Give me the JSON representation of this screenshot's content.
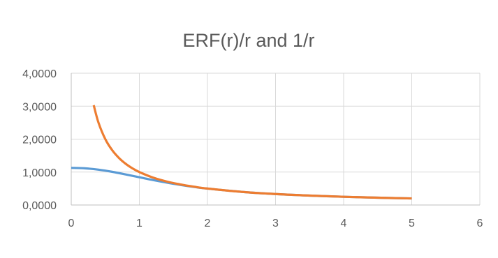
{
  "chart_data": {
    "type": "line",
    "title": "ERF(r)/r and 1/r",
    "xlabel": "",
    "ylabel": "",
    "xlim": [
      0,
      6
    ],
    "ylim": [
      0,
      4
    ],
    "x_ticks": [
      "0",
      "1",
      "2",
      "3",
      "4",
      "5",
      "6"
    ],
    "y_ticks": [
      "0,0000",
      "1,0000",
      "2,0000",
      "3,0000",
      "4,0000"
    ],
    "grid": true,
    "legend": "none",
    "series": [
      {
        "color": "#5b9bd5",
        "x": [
          0,
          0.2,
          0.4,
          0.6,
          0.8,
          1.0,
          1.2,
          1.4,
          1.6,
          1.8,
          2.0,
          2.5,
          3.0,
          3.5,
          4.0,
          4.5,
          5.0
        ],
        "y": [
          1.128,
          1.114,
          1.072,
          1.008,
          0.928,
          0.843,
          0.758,
          0.681,
          0.611,
          0.55,
          0.498,
          0.4,
          0.333,
          0.286,
          0.25,
          0.222,
          0.2
        ]
      },
      {
        "color": "#ed7d31",
        "x": [
          0.33,
          0.4,
          0.5,
          0.6,
          0.7,
          0.8,
          0.9,
          1.0,
          1.2,
          1.4,
          1.6,
          1.8,
          2.0,
          2.5,
          3.0,
          3.5,
          4.0,
          4.5,
          5.0
        ],
        "y": [
          3.03,
          2.5,
          2.0,
          1.667,
          1.429,
          1.25,
          1.111,
          1.0,
          0.833,
          0.714,
          0.625,
          0.556,
          0.5,
          0.4,
          0.333,
          0.286,
          0.25,
          0.222,
          0.2
        ]
      }
    ]
  }
}
